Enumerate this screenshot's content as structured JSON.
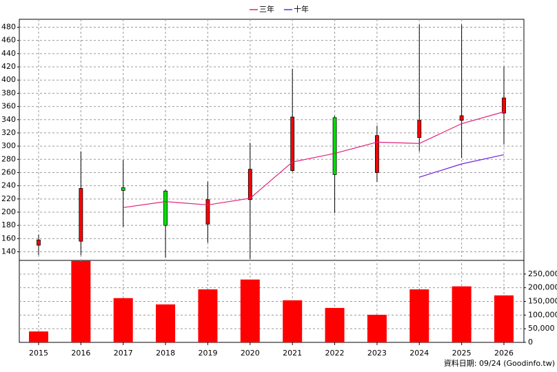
{
  "chart_data": {
    "type": "candlestick",
    "categories": [
      "2015",
      "2016",
      "2017",
      "2018",
      "2019",
      "2020",
      "2021",
      "2022",
      "2023",
      "2024",
      "2025",
      "2026"
    ],
    "candles": {
      "open": [
        150,
        156,
        237,
        232,
        182,
        219,
        263,
        343,
        260,
        313,
        339,
        350
      ],
      "high": [
        166,
        292,
        279,
        234,
        246,
        305,
        417,
        346,
        331,
        484,
        484,
        420
      ],
      "low": [
        135,
        135,
        178,
        131,
        154,
        129,
        261,
        199,
        246,
        292,
        282,
        303
      ],
      "close": [
        158,
        236,
        233,
        180,
        219,
        265,
        344,
        257,
        316,
        339,
        346,
        373
      ],
      "up_color": "#ff0000",
      "down_color": "#00e000"
    },
    "series": [
      {
        "name": "三年",
        "color": "#e0207a",
        "values": [
          null,
          null,
          207,
          216,
          211,
          221,
          276,
          289,
          306,
          304,
          334,
          352
        ]
      },
      {
        "name": "十年",
        "color": "#7020e0",
        "values": [
          null,
          null,
          null,
          null,
          null,
          null,
          null,
          null,
          null,
          253,
          273,
          287
        ]
      }
    ],
    "volume": {
      "axis": "y2",
      "color": "#ff0000",
      "values": [
        40000,
        298000,
        162000,
        139000,
        194000,
        230000,
        154000,
        126000,
        101000,
        194000,
        205000,
        172000
      ]
    },
    "ylim": [
      127,
      492
    ],
    "yticks": [
      140,
      160,
      180,
      200,
      220,
      240,
      260,
      280,
      300,
      320,
      340,
      360,
      380,
      400,
      420,
      440,
      460,
      480
    ],
    "y2lim": [
      0,
      300000
    ],
    "y2ticks": [
      0,
      {
        "value": 50000,
        "label": "50,000"
      },
      {
        "value": 100000,
        "label": "100,000"
      },
      {
        "value": 150000,
        "label": "150,000"
      },
      {
        "value": 200000,
        "label": "200,000"
      },
      {
        "value": 250000,
        "label": "250,000"
      }
    ],
    "grid": true,
    "footer": "資料日期: 09/24  (Goodinfo.tw)"
  }
}
